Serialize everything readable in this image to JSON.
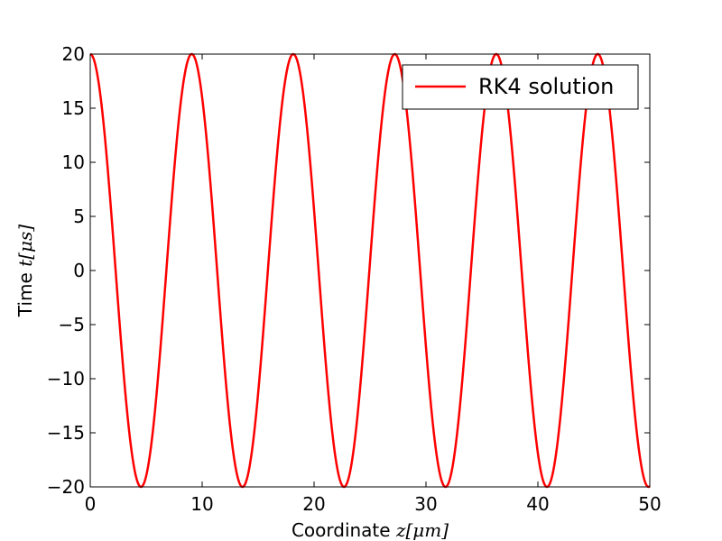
{
  "chart_data": {
    "type": "line",
    "xlabel_text": "Coordinate ",
    "xlabel_math": "z[μm]",
    "ylabel_text": "Time ",
    "ylabel_math": "t[μs]",
    "xlim": [
      0,
      50
    ],
    "ylim": [
      -20,
      20
    ],
    "x_ticks": [
      0,
      10,
      20,
      30,
      40,
      50
    ],
    "y_ticks": [
      -20,
      -15,
      -10,
      -5,
      0,
      5,
      10,
      15,
      20
    ],
    "x_tick_labels": [
      "0",
      "10",
      "20",
      "30",
      "40",
      "50"
    ],
    "y_tick_labels": [
      "−20",
      "−15",
      "−10",
      "−5",
      "0",
      "5",
      "10",
      "15",
      "20"
    ],
    "grid": false,
    "legend_position": "upper-right",
    "series": [
      {
        "name": "RK4 solution",
        "color": "#ff0000",
        "function": "20*cos(2*pi*x/9.07)",
        "amplitude": 20,
        "period": 9.07,
        "x_range": [
          0,
          50
        ]
      }
    ]
  }
}
